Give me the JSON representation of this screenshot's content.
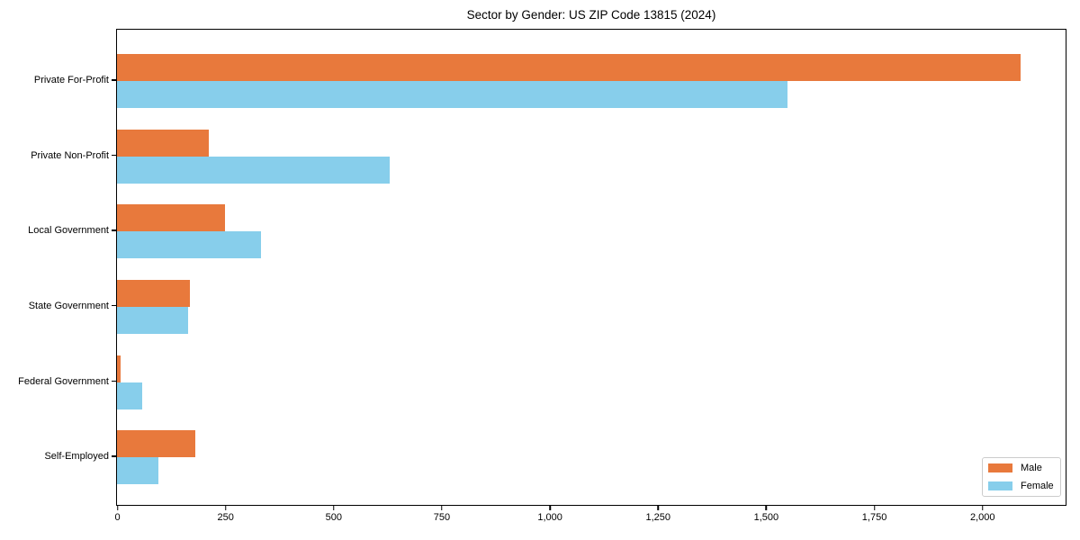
{
  "chart_data": {
    "type": "bar",
    "orientation": "horizontal",
    "title": "Sector by Gender: US ZIP Code 13815 (2024)",
    "categories": [
      "Private For-Profit",
      "Private Non-Profit",
      "Local Government",
      "State Government",
      "Federal Government",
      "Self-Employed"
    ],
    "series": [
      {
        "name": "Male",
        "color": "#e8793c",
        "values": [
          2090,
          213,
          250,
          168,
          9,
          180
        ]
      },
      {
        "name": "Female",
        "color": "#87ceeb",
        "values": [
          1550,
          630,
          332,
          164,
          58,
          95
        ]
      }
    ],
    "xlim": [
      0,
      2191
    ],
    "xticks": [
      0,
      250,
      500,
      750,
      1000,
      1250,
      1500,
      1750,
      2000
    ],
    "xtick_labels": [
      "0",
      "250",
      "500",
      "750",
      "1,000",
      "1,250",
      "1,500",
      "1,750",
      "2,000"
    ],
    "ylabel": "",
    "xlabel": "",
    "grid": false,
    "legend_position": "lower right",
    "colors": {
      "male": "#e8793c",
      "female": "#87ceeb",
      "spine": "#000000",
      "background": "#ffffff",
      "legend_border": "#cccccc"
    }
  }
}
